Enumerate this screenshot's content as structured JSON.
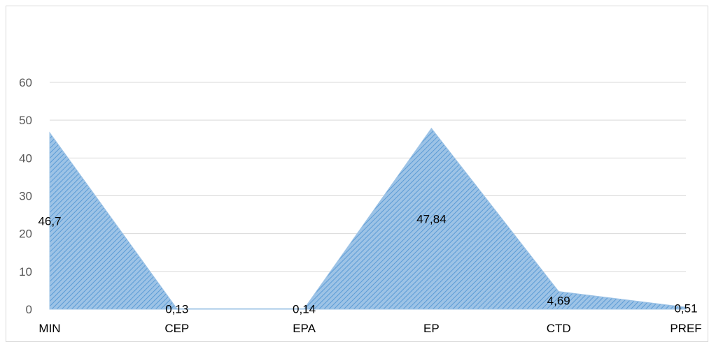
{
  "chart_data": {
    "type": "area",
    "categories": [
      "MIN",
      "CEP",
      "EPA",
      "EP",
      "CTD",
      "PREF"
    ],
    "values": [
      46.7,
      0.13,
      0.14,
      47.84,
      4.69,
      0.51
    ],
    "data_labels": [
      "46,7",
      "0,13",
      "0,14",
      "47,84",
      "4,69",
      "0,51"
    ],
    "yticks": [
      "0",
      "10",
      "20",
      "30",
      "40",
      "50",
      "60"
    ],
    "ylim": [
      0,
      60
    ],
    "grid": true,
    "fill": "#9dc3e6",
    "hatch": "#5b9bd5",
    "gridline_color": "#d9d9d9"
  }
}
